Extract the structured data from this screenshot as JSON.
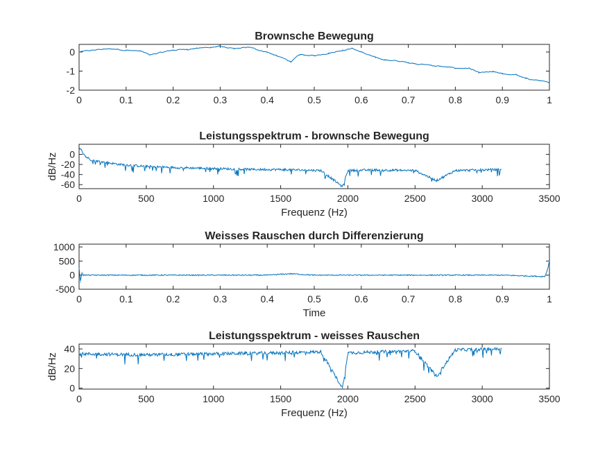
{
  "colors": {
    "line": "#0072bd",
    "axis": "#262626",
    "background": "#ffffff"
  },
  "chart_data": [
    {
      "type": "line",
      "title": "Brownsche Bewegung",
      "xlabel": "",
      "ylabel": "",
      "xlim": [
        0,
        1
      ],
      "ylim": [
        -2,
        0.4
      ],
      "xticks": [
        0,
        0.1,
        0.2,
        0.3,
        0.4,
        0.5,
        0.6,
        0.7,
        0.8,
        0.9,
        1
      ],
      "xticklabels": [
        "0",
        "0.1",
        "0.2",
        "0.3",
        "0.4",
        "0.5",
        "0.6",
        "0.7",
        "0.8",
        "0.9",
        "1"
      ],
      "yticks": [
        -2,
        -1,
        0
      ],
      "yticklabels": [
        "-2",
        "-1",
        "0"
      ],
      "series": [
        {
          "x": [
            0,
            0.05,
            0.08,
            0.1,
            0.13,
            0.15,
            0.2,
            0.23,
            0.25,
            0.28,
            0.3,
            0.33,
            0.36,
            0.4,
            0.42,
            0.45,
            0.47,
            0.5,
            0.53,
            0.56,
            0.58,
            0.6,
            0.63,
            0.65,
            0.7,
            0.75,
            0.8,
            0.83,
            0.85,
            0.88,
            0.9,
            0.93,
            0.95,
            0.98,
            1.0
          ],
          "y": [
            0.0,
            0.15,
            0.15,
            0.1,
            0.05,
            -0.15,
            0.1,
            0.15,
            0.2,
            0.25,
            0.3,
            0.15,
            0.25,
            0.0,
            -0.2,
            -0.5,
            -0.15,
            -0.2,
            -0.05,
            0.1,
            0.2,
            0.0,
            -0.3,
            -0.4,
            -0.55,
            -0.7,
            -0.85,
            -0.85,
            -1.1,
            -1.05,
            -1.15,
            -1.2,
            -1.4,
            -1.5,
            -1.65
          ]
        }
      ]
    },
    {
      "type": "line",
      "title": "Leistungsspektrum - brownsche Bewegung",
      "xlabel": "Frequenz (Hz)",
      "ylabel": "dB/Hz",
      "xlim": [
        0,
        3500
      ],
      "ylim": [
        -68,
        20
      ],
      "xticks": [
        0,
        500,
        1000,
        1500,
        2000,
        2500,
        3000,
        3500
      ],
      "xticklabels": [
        "0",
        "500",
        "1000",
        "1500",
        "2000",
        "2500",
        "3000",
        "3500"
      ],
      "yticks": [
        -60,
        -40,
        -20,
        0
      ],
      "yticklabels": [
        "-60",
        "-40",
        "-20",
        "0"
      ],
      "series": [
        {
          "x": [
            0,
            50,
            100,
            200,
            300,
            500,
            700,
            1000,
            1300,
            1500,
            1800,
            1960,
            2000,
            2200,
            2500,
            2660,
            2800,
            3140
          ],
          "y": [
            15,
            -5,
            -12,
            -16,
            -20,
            -24,
            -26,
            -28,
            -30,
            -30,
            -32,
            -64,
            -32,
            -31,
            -32,
            -52,
            -32,
            -30
          ]
        }
      ]
    },
    {
      "type": "line",
      "title": "Weisses Rauschen durch Differenzierung",
      "xlabel": "Time",
      "ylabel": "",
      "xlim": [
        0,
        1
      ],
      "ylim": [
        -500,
        1100
      ],
      "xticks": [
        0,
        0.1,
        0.2,
        0.3,
        0.4,
        0.5,
        0.6,
        0.7,
        0.8,
        0.9,
        1
      ],
      "xticklabels": [
        "0",
        "0.1",
        "0.2",
        "0.3",
        "0.4",
        "0.5",
        "0.6",
        "0.7",
        "0.8",
        "0.9",
        "1"
      ],
      "yticks": [
        -500,
        0,
        500,
        1000
      ],
      "yticklabels": [
        "-500",
        "0",
        "500",
        "1000"
      ],
      "series": [
        {
          "x": [
            0,
            0.003,
            0.006,
            0.01,
            0.1,
            0.2,
            0.3,
            0.4,
            0.45,
            0.5,
            0.6,
            0.7,
            0.8,
            0.9,
            0.99,
            0.995,
            1.0
          ],
          "y": [
            250,
            -250,
            100,
            0,
            0,
            0,
            0,
            0,
            50,
            0,
            0,
            0,
            0,
            0,
            -50,
            150,
            500
          ]
        }
      ]
    },
    {
      "type": "line",
      "title": "Leistungsspektrum - weisses Rauschen",
      "xlabel": "Frequenz (Hz)",
      "ylabel": "dB/Hz",
      "xlim": [
        0,
        3500
      ],
      "ylim": [
        -1,
        45
      ],
      "xticks": [
        0,
        500,
        1000,
        1500,
        2000,
        2500,
        3000,
        3500
      ],
      "xticklabels": [
        "0",
        "500",
        "1000",
        "1500",
        "2000",
        "2500",
        "3000",
        "3500"
      ],
      "yticks": [
        0,
        20,
        40
      ],
      "yticklabels": [
        "0",
        "20",
        "40"
      ],
      "series": [
        {
          "x": [
            0,
            500,
            1000,
            1500,
            1800,
            1960,
            2000,
            2500,
            2660,
            2800,
            3140
          ],
          "y": [
            35,
            34,
            35,
            36,
            37,
            0,
            36,
            38,
            12,
            39,
            40
          ]
        }
      ]
    }
  ]
}
